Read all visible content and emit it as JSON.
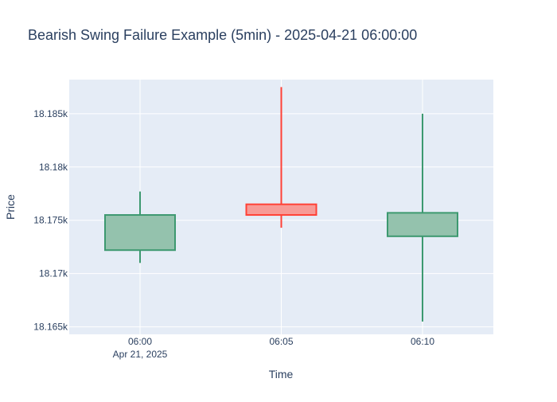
{
  "chart_data": {
    "type": "candlestick",
    "title": "Bearish Swing Failure Example (5min) - 2025-04-21 06:00:00",
    "xlabel": "Time",
    "ylabel": "Price",
    "x_ticks": [
      {
        "label": "06:00",
        "sublabel": "Apr 21, 2025"
      },
      {
        "label": "06:05",
        "sublabel": ""
      },
      {
        "label": "06:10",
        "sublabel": ""
      }
    ],
    "y_ticks": [
      18165,
      18170,
      18175,
      18180,
      18185
    ],
    "y_tick_labels": [
      "18.165k",
      "18.17k",
      "18.175k",
      "18.18k",
      "18.185k"
    ],
    "ylim": [
      18164.3,
      18188.2
    ],
    "candles": [
      {
        "time": "06:00",
        "open": 18172.2,
        "high": 18177.7,
        "low": 18171.0,
        "close": 18175.5,
        "direction": "increasing"
      },
      {
        "time": "06:05",
        "open": 18176.5,
        "high": 18187.5,
        "low": 18174.3,
        "close": 18175.5,
        "direction": "decreasing"
      },
      {
        "time": "06:10",
        "open": 18173.5,
        "high": 18185.0,
        "low": 18165.5,
        "close": 18175.7,
        "direction": "increasing"
      }
    ],
    "grid": true,
    "colors": {
      "increasing_line": "#3d9970",
      "increasing_fill": "#94c2ad",
      "decreasing_line": "#ff4136",
      "decreasing_fill": "#f79a96",
      "plot_bg": "#e5ecf6",
      "grid": "#ffffff",
      "text": "#2a3f5f"
    }
  }
}
